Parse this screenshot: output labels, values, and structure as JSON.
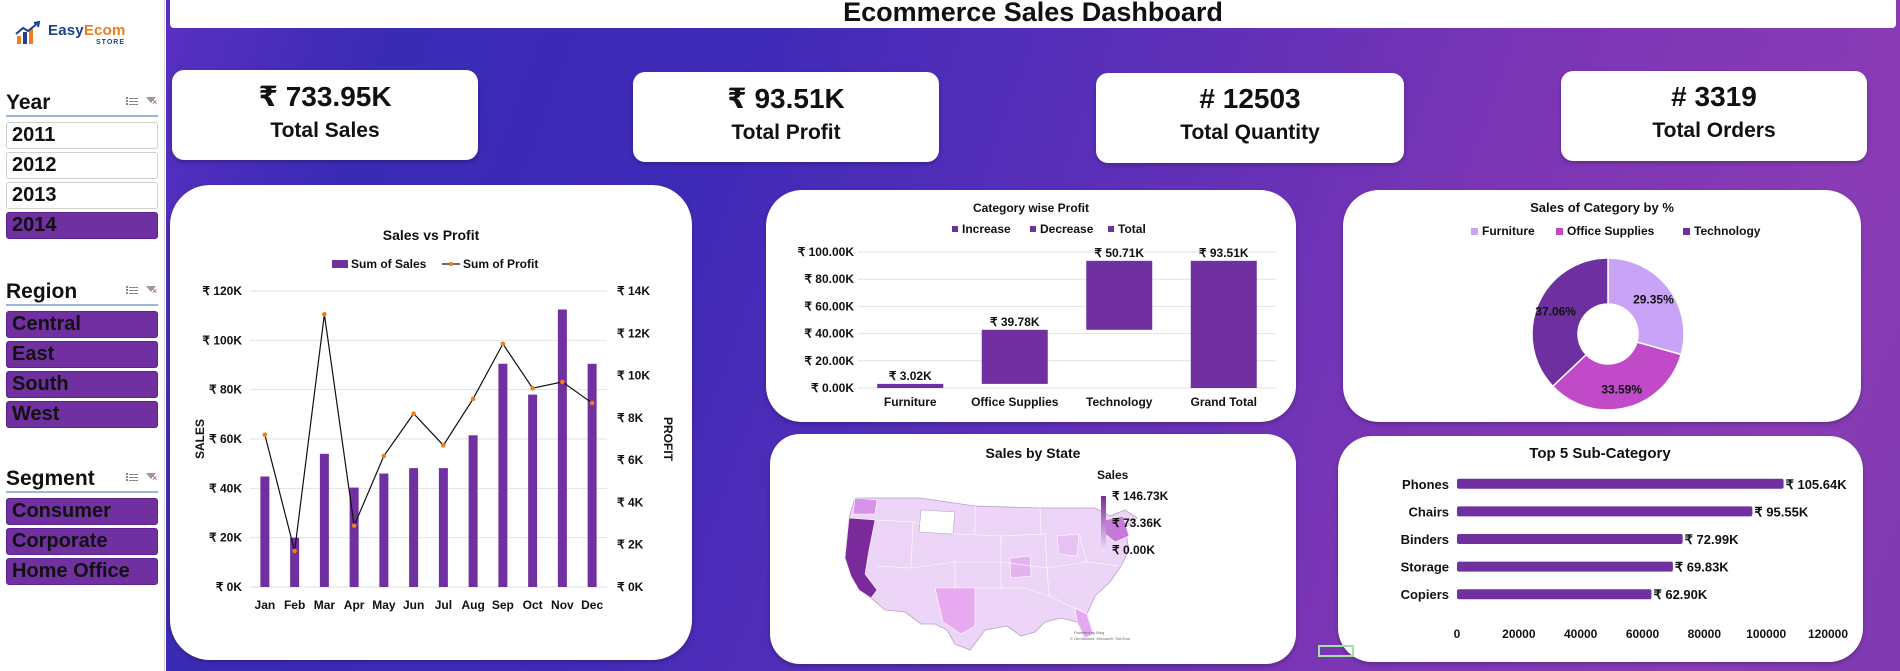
{
  "logo": {
    "name_part1": "Easy",
    "name_part2": "Ecom",
    "sub": "STORE"
  },
  "title": "Ecommerce Sales Dashboard",
  "slicers": {
    "year": {
      "title": "Year",
      "items": [
        {
          "label": "2011",
          "selected": false
        },
        {
          "label": "2012",
          "selected": false
        },
        {
          "label": "2013",
          "selected": false
        },
        {
          "label": "2014",
          "selected": true
        }
      ]
    },
    "region": {
      "title": "Region",
      "items": [
        {
          "label": "Central",
          "selected": true
        },
        {
          "label": "East",
          "selected": true
        },
        {
          "label": "South",
          "selected": true
        },
        {
          "label": "West",
          "selected": true
        }
      ]
    },
    "segment": {
      "title": "Segment",
      "items": [
        {
          "label": "Consumer",
          "selected": true
        },
        {
          "label": "Corporate",
          "selected": true
        },
        {
          "label": "Home Office",
          "selected": true
        }
      ]
    }
  },
  "kpis": {
    "sales": {
      "value": "₹ 733.95K",
      "label": "Total Sales"
    },
    "profit": {
      "value": "₹ 93.51K",
      "label": "Total Profit"
    },
    "quantity": {
      "value": "# 12503",
      "label": "Total Quantity"
    },
    "orders": {
      "value": "# 3319",
      "label": "Total Orders"
    }
  },
  "colors": {
    "purple": "#7030a0",
    "bar_purple": "#7030a0",
    "profit_line": "#111111",
    "profit_marker": "#f07c1b",
    "pie_furniture": "#c9a3f5",
    "pie_office": "#c04ac8",
    "pie_tech": "#6e2fa0"
  },
  "chart_data": [
    {
      "type": "bar",
      "title": "Sales vs Profit",
      "xlabel": "",
      "ylabel": "SALES",
      "y2label": "PROFIT",
      "categories": [
        "Jan",
        "Feb",
        "Mar",
        "Apr",
        "May",
        "Jun",
        "Jul",
        "Aug",
        "Sep",
        "Oct",
        "Nov",
        "Dec"
      ],
      "series": [
        {
          "name": "Sum of Sales",
          "kind": "bar",
          "values": [
            44800,
            20000,
            54000,
            40300,
            46000,
            48200,
            48200,
            61500,
            90500,
            78000,
            112500,
            90500
          ]
        },
        {
          "name": "Sum of Profit",
          "kind": "line",
          "axis": "secondary",
          "values": [
            7200,
            1700,
            12900,
            2900,
            6200,
            8200,
            6700,
            8900,
            11500,
            9400,
            9700,
            8700
          ]
        }
      ],
      "ylim": [
        0,
        120000
      ],
      "y2lim": [
        0,
        14000
      ],
      "yticks": [
        "₹ 0K",
        "₹ 20K",
        "₹ 40K",
        "₹ 60K",
        "₹ 80K",
        "₹ 100K",
        "₹ 120K"
      ],
      "y2ticks": [
        "₹ 0K",
        "₹ 2K",
        "₹ 4K",
        "₹ 6K",
        "₹ 8K",
        "₹ 10K",
        "₹ 12K",
        "₹ 14K"
      ],
      "legend": "top",
      "grid": true
    },
    {
      "type": "bar",
      "subtype": "waterfall",
      "title": "Category wise Profit",
      "legend_items": [
        "Increase",
        "Decrease",
        "Total"
      ],
      "categories": [
        "Furniture",
        "Office Supplies",
        "Technology",
        "Grand Total"
      ],
      "values": [
        3020,
        39780,
        50710,
        93510
      ],
      "is_total": [
        false,
        false,
        false,
        true
      ],
      "data_labels": [
        "₹ 3.02K",
        "₹ 39.78K",
        "₹ 50.71K",
        "₹ 93.51K"
      ],
      "ylim": [
        0,
        100000
      ],
      "yticks": [
        "₹ 0.00K",
        "₹ 20.00K",
        "₹ 40.00K",
        "₹ 60.00K",
        "₹ 80.00K",
        "₹ 100.00K"
      ],
      "legend": "top",
      "grid": true
    },
    {
      "type": "pie",
      "subtype": "donut",
      "title": "Sales of Category by %",
      "categories": [
        "Furniture",
        "Office Supplies",
        "Technology"
      ],
      "values": [
        29.35,
        33.59,
        37.06
      ],
      "data_labels": [
        "29.35%",
        "33.59%",
        "37.06%"
      ],
      "legend": "top"
    },
    {
      "type": "bar",
      "orientation": "horizontal",
      "title": "Top 5 Sub-Category",
      "categories": [
        "Phones",
        "Chairs",
        "Binders",
        "Storage",
        "Copiers"
      ],
      "values": [
        105640,
        95550,
        72990,
        69830,
        62900
      ],
      "data_labels": [
        "₹ 105.64K",
        "₹ 95.55K",
        "₹ 72.99K",
        "₹ 69.83K",
        "₹ 62.90K"
      ],
      "xlim": [
        0,
        120000
      ],
      "xticks": [
        "0",
        "20000",
        "40000",
        "60000",
        "80000",
        "100000",
        "120000"
      ]
    }
  ],
  "map": {
    "title": "Sales by State",
    "legend_title": "Sales",
    "legend_labels": [
      "₹ 146.73K",
      "₹ 73.36K",
      "₹ 0.00K"
    ],
    "attribution": "Powered by Bing\n© GeoNames, Microsoft, TomTom"
  }
}
